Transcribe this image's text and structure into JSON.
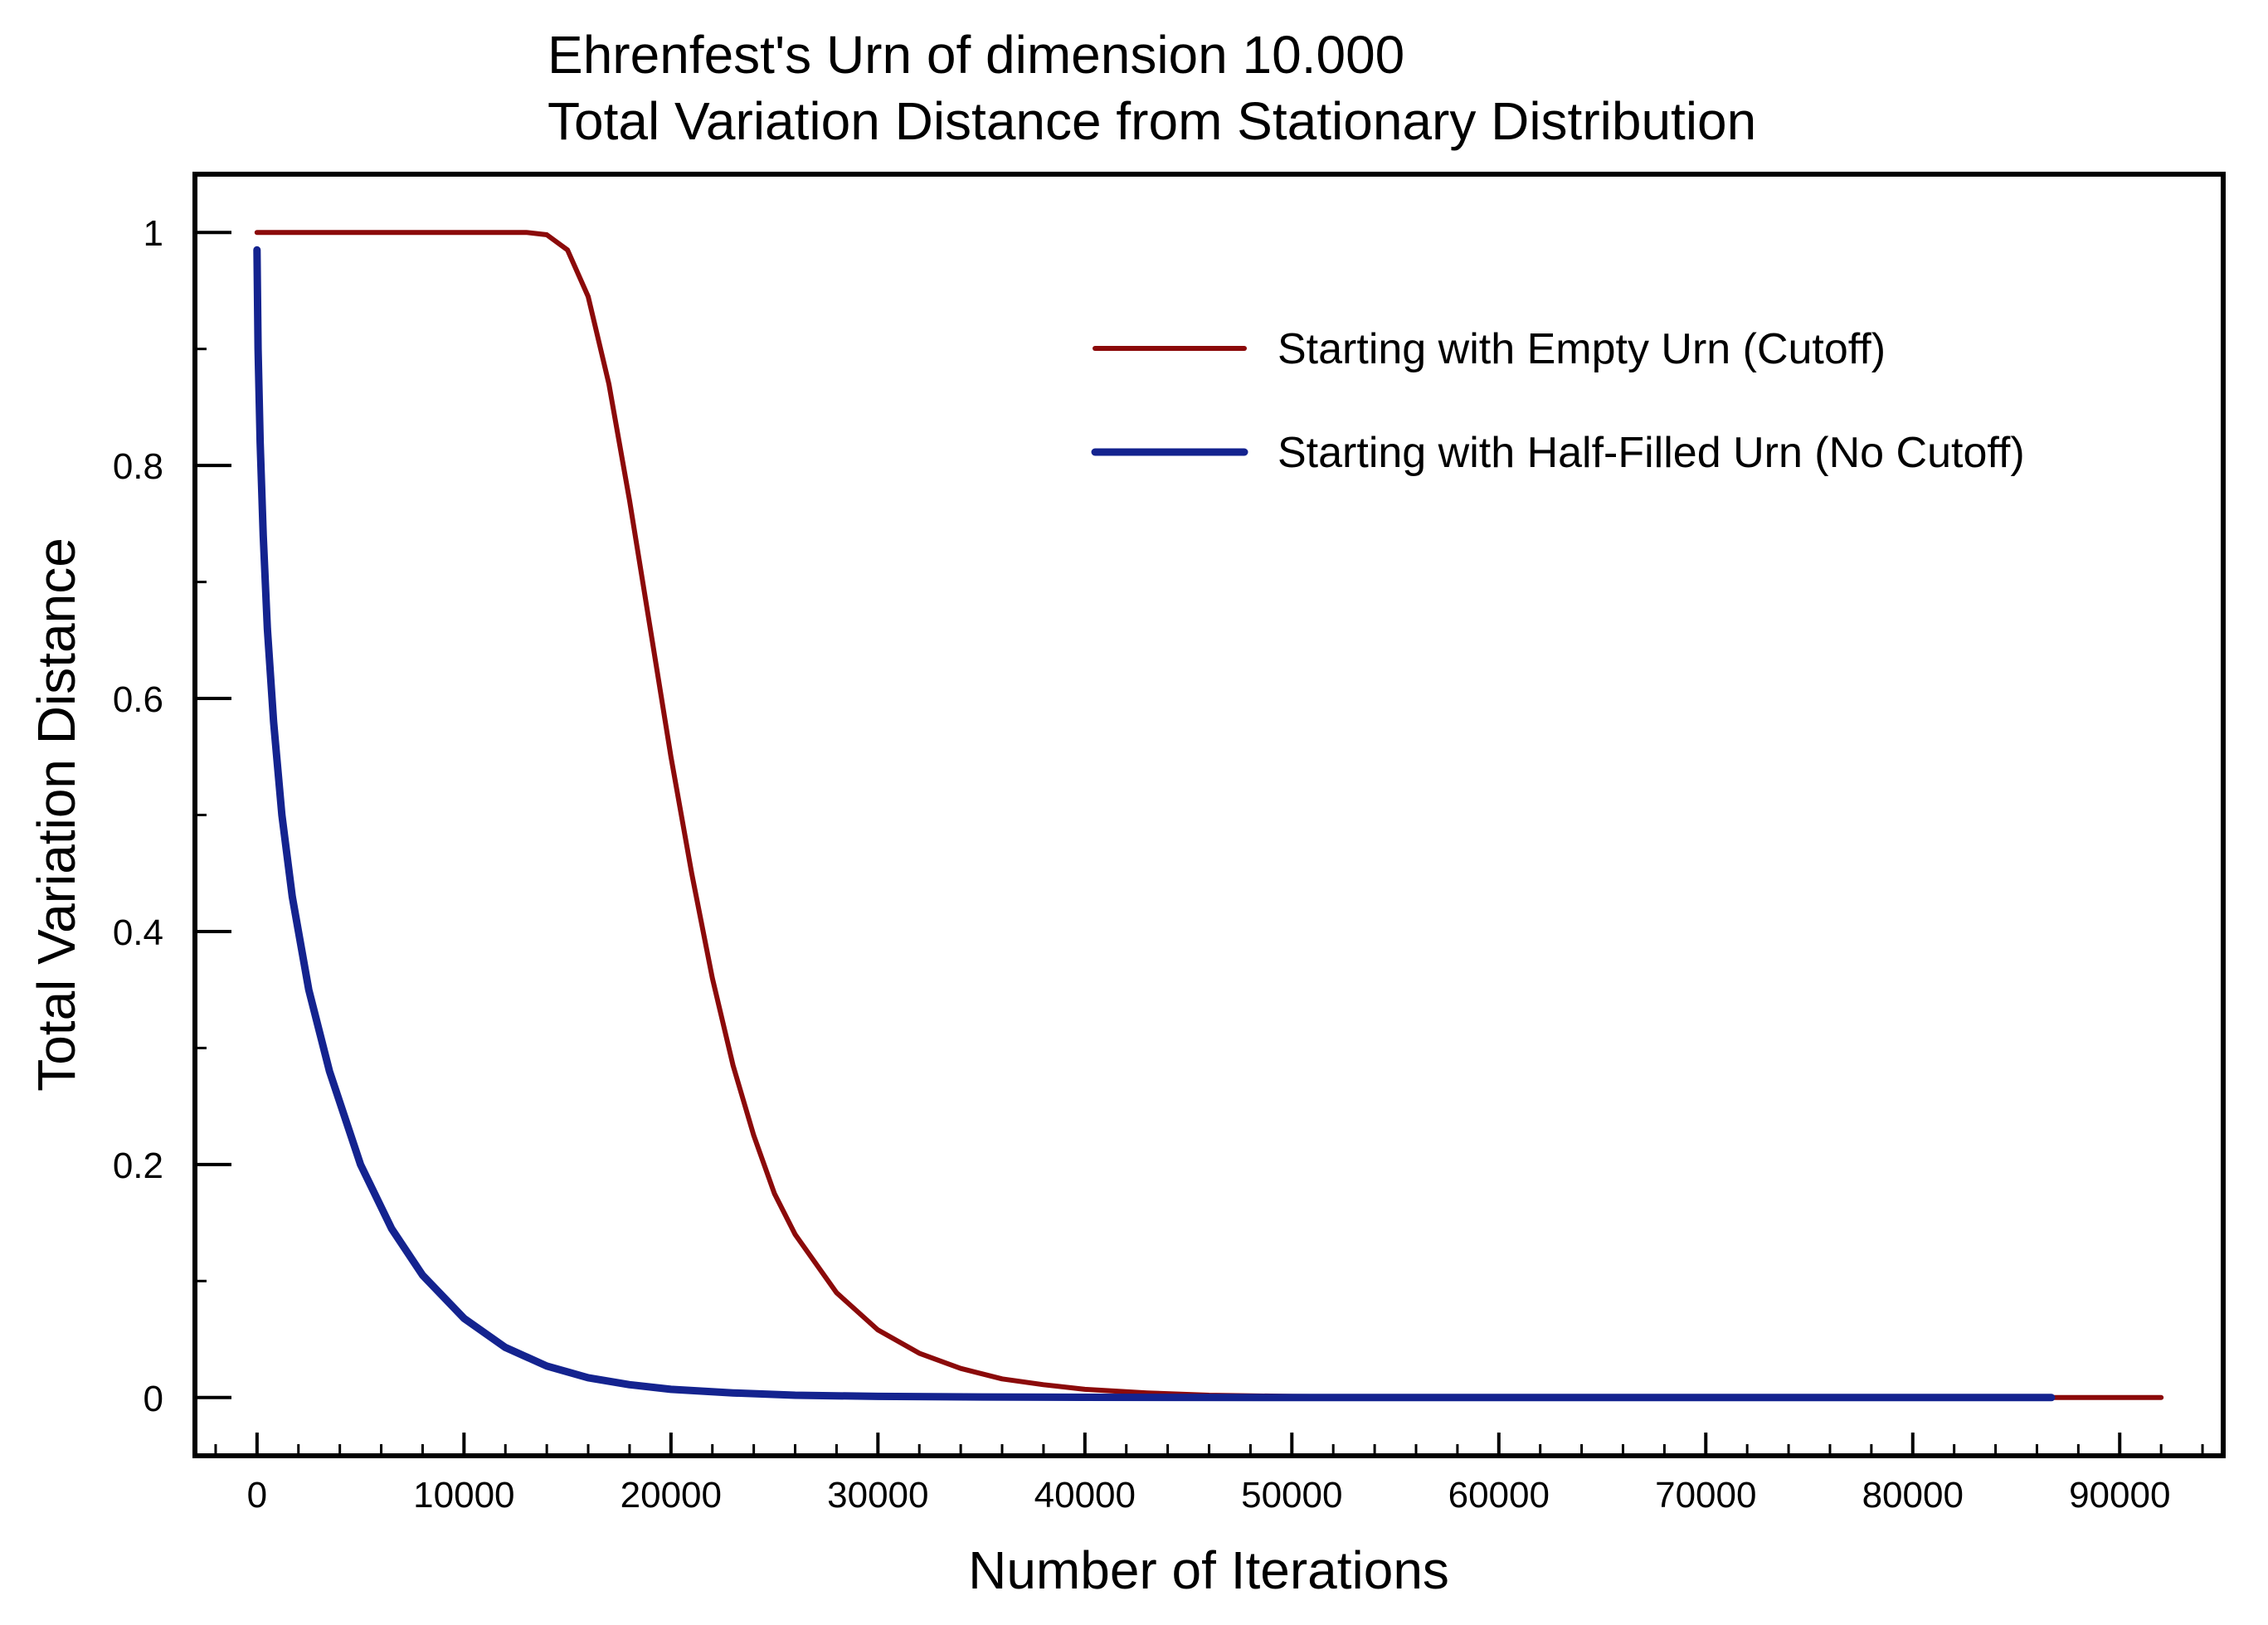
{
  "chart_data": {
    "type": "line",
    "title_lines": [
      "Ehrenfest's Urn of dimension 10.000",
      "Total Variation Distance from Stationary Distribution"
    ],
    "xlabel": "Number of  Iterations",
    "ylabel": "Total Variation Distance",
    "xlim": [
      -3000,
      95000
    ],
    "ylim": [
      -0.05,
      1.05
    ],
    "xticks": [
      0,
      10000,
      20000,
      30000,
      40000,
      50000,
      60000,
      70000,
      80000,
      90000
    ],
    "xtick_labels": [
      "0",
      "10000",
      "20000",
      "30000",
      "40000",
      "50000",
      "60000",
      "70000",
      "80000",
      "90000"
    ],
    "xminor_step": 2000,
    "yticks": [
      0,
      0.2,
      0.4,
      0.6,
      0.8,
      1
    ],
    "ytick_labels": [
      "0",
      "0.2",
      "0.4",
      "0.6",
      "0.8",
      "1"
    ],
    "yminor_step": 0.1,
    "grid": false,
    "legend_position": "top-right",
    "series": [
      {
        "name": "Starting with Empty Urn (Cutoff)",
        "color": "#8b0a0a",
        "x": [
          0,
          5000,
          10000,
          13000,
          14000,
          15000,
          16000,
          17000,
          18000,
          19000,
          20000,
          21000,
          22000,
          23000,
          24000,
          25000,
          26000,
          28000,
          30000,
          32000,
          34000,
          36000,
          38000,
          40000,
          43000,
          46000,
          50000,
          55000,
          60000,
          70000,
          80000,
          92000
        ],
        "y": [
          1.0,
          1.0,
          1.0,
          1.0,
          0.998,
          0.985,
          0.945,
          0.87,
          0.77,
          0.66,
          0.55,
          0.45,
          0.36,
          0.285,
          0.225,
          0.175,
          0.14,
          0.09,
          0.058,
          0.038,
          0.025,
          0.016,
          0.011,
          0.007,
          0.004,
          0.002,
          0.001,
          0.0005,
          0.0002,
          0.0,
          0.0,
          0.0
        ]
      },
      {
        "name": "Starting with Half-Filled Urn (No Cutoff)",
        "color": "#14238f",
        "x": [
          0,
          50,
          150,
          300,
          500,
          800,
          1200,
          1700,
          2500,
          3500,
          5000,
          6500,
          8000,
          10000,
          12000,
          14000,
          16000,
          18000,
          20000,
          23000,
          26000,
          30000,
          35000,
          40000,
          50000,
          60000,
          70000,
          80000,
          86700
        ],
        "y": [
          0.985,
          0.9,
          0.82,
          0.74,
          0.66,
          0.58,
          0.5,
          0.43,
          0.35,
          0.28,
          0.2,
          0.145,
          0.105,
          0.068,
          0.043,
          0.027,
          0.017,
          0.011,
          0.007,
          0.004,
          0.002,
          0.001,
          0.0005,
          0.0002,
          0.0,
          0.0,
          0.0,
          0.0,
          0.0
        ]
      }
    ]
  }
}
